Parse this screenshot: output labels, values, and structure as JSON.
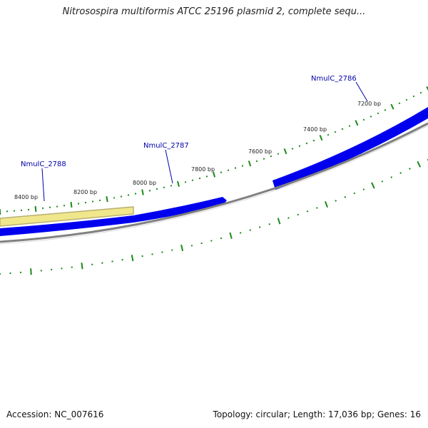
{
  "title": "Nitrosospira multiformis ATCC 25196 plasmid 2, complete sequ...",
  "footer": {
    "accession": "Accession: NC_007616",
    "summary": "Topology: circular; Length: 17,036 bp; Genes: 16"
  },
  "colors": {
    "gene": "#0000ee",
    "gene_highlight": "#f0e68c",
    "backbone": "#808080",
    "tick": "#1a8a1a",
    "gene_label": "#0000aa"
  },
  "map": {
    "tick_labels": [
      {
        "pos": 7200,
        "label": "7200 bp"
      },
      {
        "pos": 7400,
        "label": "7400 bp"
      },
      {
        "pos": 7600,
        "label": "7600 bp"
      },
      {
        "pos": 7800,
        "label": "7800 bp"
      },
      {
        "pos": 8000,
        "label": "8000 bp"
      },
      {
        "pos": 8200,
        "label": "8200 bp"
      },
      {
        "pos": 8400,
        "label": "8400 bp"
      }
    ],
    "genes": [
      {
        "name": "NmulC_2786"
      },
      {
        "name": "NmulC_2787"
      },
      {
        "name": "NmulC_2788"
      }
    ]
  }
}
